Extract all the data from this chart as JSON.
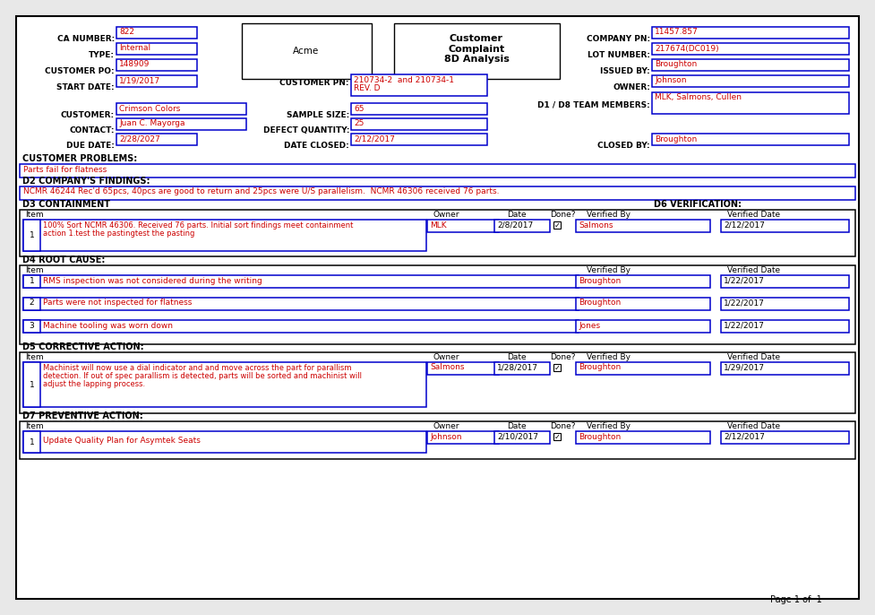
{
  "bg_color": "#e8e8e8",
  "form_bg": "#ffffff",
  "border_color": "#000000",
  "box_color": "#0000cc",
  "text_color": "#000000",
  "field_text_color": "#cc0000",
  "header_company": "Acme",
  "header_title": "Customer\nComplaint\n8D Analysis",
  "customer_problems_label": "CUSTOMER PROBLEMS:",
  "customer_problems_text": "Parts fail for flatness",
  "d2_label": "D2 COMPANY'S FINDINGS:",
  "d2_text": "NCMR 46244 Rec'd 65pcs, 40pcs are good to return and 25pcs were U/S parallelism.  NCMR 46306 received 76 parts.",
  "d3_label": "D3 CONTAINMENT",
  "d6_label": "D6 VERIFICATION:",
  "d4_label": "D4 ROOT CAUSE:",
  "d5_label": "D5 CORRECTIVE ACTION:",
  "d7_label": "D7 PREVENTIVE ACTION:",
  "page_label": "Page 1 of  1",
  "d3_rows": [
    {
      "item": "1",
      "desc1": "100% Sort NCMR 46306. Received 76 parts. Initial sort findings meet containment",
      "desc2": "action 1.test the pastingtest the pasting",
      "owner": "MLK",
      "date": "2/8/2017",
      "done": true,
      "verified_by": "Salmons",
      "verified_date": "2/12/2017"
    }
  ],
  "d4_rows": [
    {
      "item": "1",
      "desc": "RMS inspection was not considered during the writing",
      "verified_by": "Broughton",
      "verified_date": "1/22/2017"
    },
    {
      "item": "2",
      "desc": "Parts were not inspected for flatness",
      "verified_by": "Broughton",
      "verified_date": "1/22/2017"
    },
    {
      "item": "3",
      "desc": "Machine tooling was worn down",
      "verified_by": "Jones",
      "verified_date": "1/22/2017"
    }
  ],
  "d5_rows": [
    {
      "item": "1",
      "desc1": "Machinist will now use a dial indicator and and move across the part for parallism",
      "desc2": "detection. If out of spec parallism is detected, parts will be sorted and machinist will",
      "desc3": "adjust the lapping process.",
      "owner": "Salmons",
      "date": "1/28/2017",
      "done": true,
      "verified_by": "Broughton",
      "verified_date": "1/29/2017"
    }
  ],
  "d7_rows": [
    {
      "item": "1",
      "desc": "Update Quality Plan for Asymtek Seats",
      "owner": "Johnson",
      "date": "2/10/2017",
      "done": true,
      "verified_by": "Broughton",
      "verified_date": "2/12/2017"
    }
  ]
}
